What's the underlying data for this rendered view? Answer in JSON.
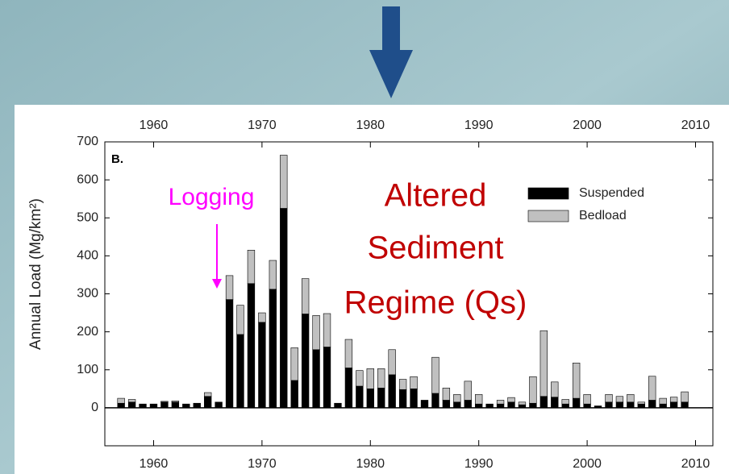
{
  "chart_data": {
    "type": "stacked_bar",
    "y_label": "Annual Load (Mg/km²)",
    "panel_label": "B.",
    "annotations": [
      "Logging",
      "Altered",
      "Sediment",
      "Regime (Qs)"
    ],
    "x": [
      1957,
      1958,
      1959,
      1960,
      1961,
      1962,
      1963,
      1964,
      1965,
      1966,
      1967,
      1968,
      1969,
      1970,
      1971,
      1972,
      1973,
      1974,
      1975,
      1976,
      1977,
      1978,
      1979,
      1980,
      1981,
      1982,
      1983,
      1984,
      1985,
      1986,
      1987,
      1988,
      1989,
      1990,
      1991,
      1992,
      1993,
      1994,
      1995,
      1996,
      1997,
      1998,
      1999,
      2000,
      2001,
      2002,
      2003,
      2004,
      2005,
      2006,
      2007,
      2008,
      2009
    ],
    "series": [
      {
        "name": "Suspended",
        "color": "#000000",
        "values": [
          12,
          15,
          10,
          10,
          15,
          15,
          10,
          12,
          30,
          15,
          285,
          193,
          327,
          225,
          312,
          525,
          72,
          247,
          153,
          160,
          12,
          105,
          57,
          50,
          52,
          87,
          48,
          50,
          20,
          38,
          20,
          15,
          20,
          10,
          10,
          10,
          15,
          8,
          12,
          30,
          28,
          10,
          25,
          10,
          5,
          15,
          15,
          15,
          10,
          20,
          10,
          15,
          15
        ]
      },
      {
        "name": "Bedload",
        "color": "#c0c0c0",
        "values": [
          13,
          7,
          0,
          0,
          2,
          3,
          0,
          0,
          10,
          0,
          63,
          77,
          88,
          25,
          76,
          140,
          86,
          93,
          90,
          88,
          0,
          75,
          41,
          53,
          51,
          66,
          27,
          32,
          0,
          95,
          32,
          20,
          50,
          25,
          0,
          10,
          12,
          7,
          70,
          173,
          40,
          12,
          93,
          25,
          0,
          20,
          15,
          20,
          5,
          63,
          15,
          13,
          27
        ]
      }
    ],
    "xlim": [
      1955.5,
      2011.6
    ],
    "xticks": [
      1960,
      1970,
      1980,
      1990,
      2000,
      2010
    ],
    "ylim": [
      -100,
      700
    ],
    "yticks": [
      0,
      100,
      200,
      300,
      400,
      500,
      600,
      700
    ],
    "legend": "upper right"
  }
}
